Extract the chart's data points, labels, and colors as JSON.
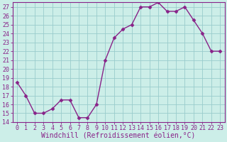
{
  "x": [
    0,
    1,
    2,
    3,
    4,
    5,
    6,
    7,
    8,
    9,
    10,
    11,
    12,
    13,
    14,
    15,
    16,
    17,
    18,
    19,
    20,
    21,
    22,
    23
  ],
  "y": [
    18.5,
    17.0,
    15.0,
    15.0,
    15.5,
    16.5,
    16.5,
    14.5,
    14.5,
    16.0,
    21.0,
    23.5,
    24.5,
    25.0,
    27.0,
    27.0,
    27.5,
    26.5,
    26.5,
    27.0,
    25.5,
    24.0,
    22.0,
    22.0
  ],
  "xlabel": "Windchill (Refroidissement éolien,°C)",
  "ylim": [
    14,
    27.5
  ],
  "xlim_min": -0.5,
  "xlim_max": 23.5,
  "yticks": [
    14,
    15,
    16,
    17,
    18,
    19,
    20,
    21,
    22,
    23,
    24,
    25,
    26,
    27
  ],
  "xticks": [
    0,
    1,
    2,
    3,
    4,
    5,
    6,
    7,
    8,
    9,
    10,
    11,
    12,
    13,
    14,
    15,
    16,
    17,
    18,
    19,
    20,
    21,
    22,
    23
  ],
  "line_color": "#882288",
  "marker": "D",
  "marker_size": 2.5,
  "bg_color": "#cceee8",
  "grid_color": "#99cccc",
  "xlabel_fontsize": 7.0,
  "tick_fontsize": 6.0,
  "linewidth": 1.0
}
